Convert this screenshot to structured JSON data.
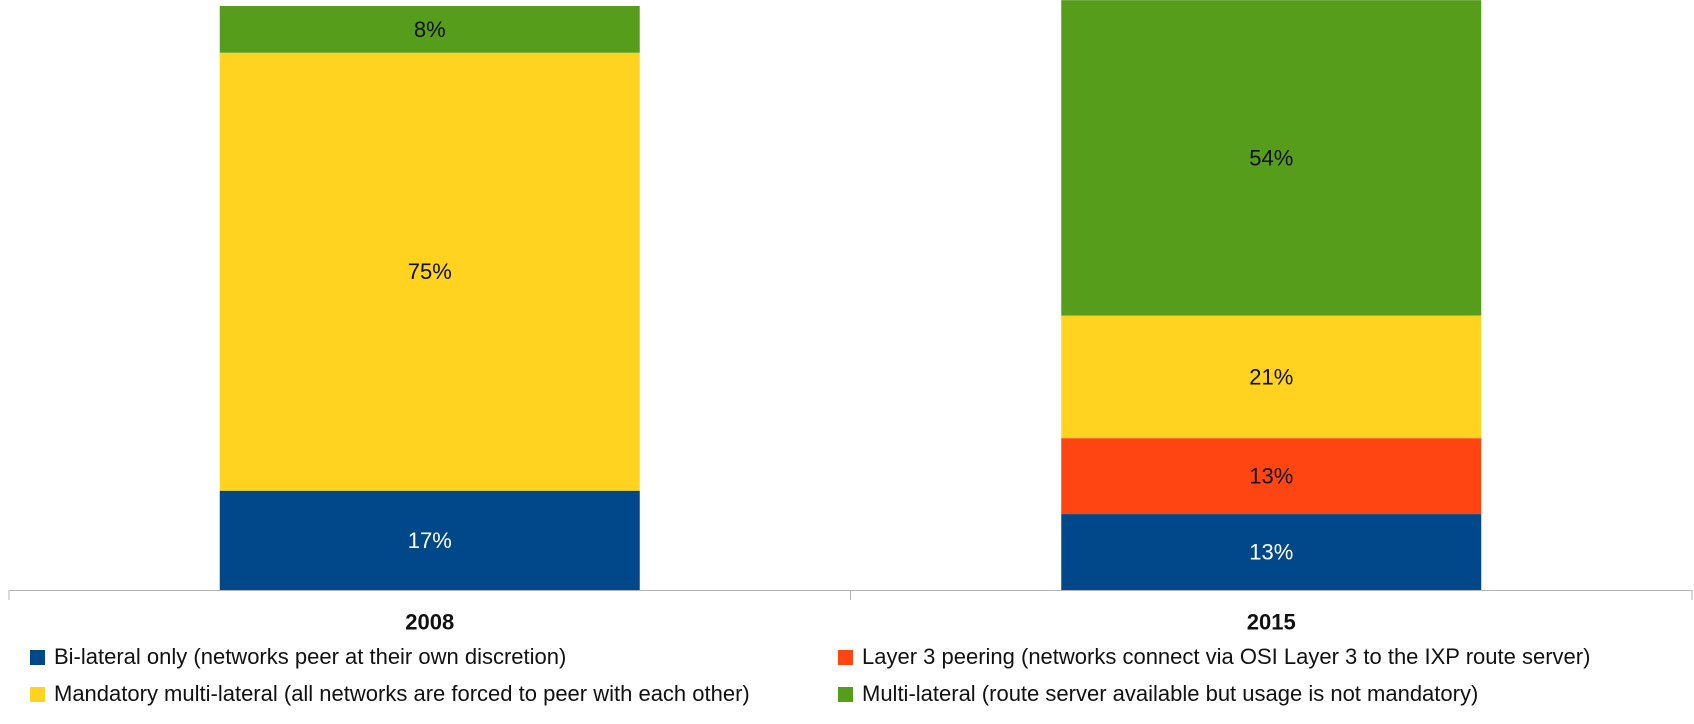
{
  "chart_data": {
    "type": "bar",
    "stacked": true,
    "percent_stacked": true,
    "categories": [
      "2008",
      "2015"
    ],
    "series": [
      {
        "name": "Bi-lateral only (networks peer at their own discretion)",
        "color": "#00488a",
        "label_color": "#ffffff",
        "values": [
          17,
          13
        ],
        "labels": [
          "17%",
          "13%"
        ]
      },
      {
        "name": "Layer 3 peering (networks connect via OSI Layer 3 to the IXP route server)",
        "color": "#ff4612",
        "label_color": "#111111",
        "values": [
          0,
          13
        ],
        "labels": [
          "",
          "13%"
        ]
      },
      {
        "name": "Mandatory multi-lateral (all networks are forced to peer with each other)",
        "color": "#ffd320",
        "label_color": "#111111",
        "values": [
          75,
          21
        ],
        "labels": [
          "75%",
          "21%"
        ]
      },
      {
        "name": "Multi-lateral (route server available but usage is not mandatory)",
        "color": "#579d1c",
        "label_color": "#111111",
        "values": [
          8,
          54
        ],
        "labels": [
          "8%",
          "54%"
        ]
      }
    ],
    "legend_order": [
      0,
      1,
      2,
      3
    ],
    "ylim": [
      0,
      100
    ],
    "grid": false,
    "legend_position": "bottom",
    "title": "",
    "xlabel": "",
    "ylabel": ""
  }
}
